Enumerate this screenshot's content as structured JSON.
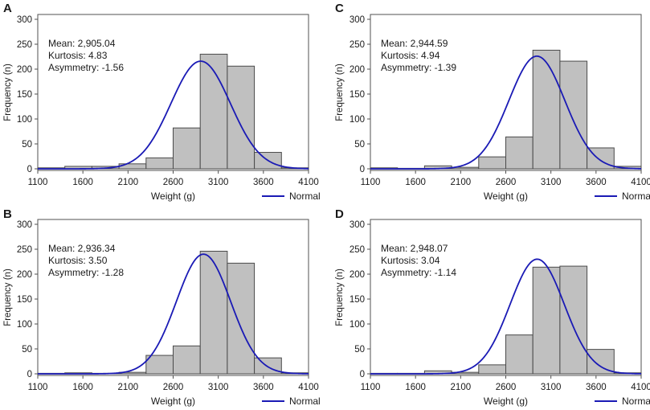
{
  "chart_data": [
    {
      "panel": "A",
      "type": "histogram",
      "xlabel": "Weight (g)",
      "ylabel": "Frequency (n)",
      "xlim": [
        1100,
        4100
      ],
      "ylim": [
        0,
        300
      ],
      "x_ticks": [
        "1100",
        "1600",
        "2100",
        "2600",
        "3100",
        "3600",
        "4100"
      ],
      "y_ticks": [
        "0",
        "50",
        "100",
        "150",
        "200",
        "250",
        "300"
      ],
      "stats": [
        "Mean: 2,905.04",
        "Kurtosis: 4.83",
        "Asymmetry: -1.56"
      ],
      "legend": "Normal",
      "bin_width": 300,
      "bin_starts": [
        1100,
        1400,
        1700,
        2000,
        2300,
        2600,
        2900,
        3200,
        3500,
        3800
      ],
      "values": [
        2,
        5,
        5,
        10,
        22,
        82,
        230,
        206,
        33,
        2
      ],
      "normal": {
        "mean": 2905.04,
        "sd": 330,
        "peak": 216
      }
    },
    {
      "panel": "C",
      "type": "histogram",
      "xlabel": "Weight (g)",
      "ylabel": "Frequency (n)",
      "xlim": [
        1100,
        4100
      ],
      "ylim": [
        0,
        300
      ],
      "x_ticks": [
        "1100",
        "1600",
        "2100",
        "2600",
        "3100",
        "3600",
        "4100"
      ],
      "y_ticks": [
        "0",
        "50",
        "100",
        "150",
        "200",
        "250",
        "300"
      ],
      "stats": [
        "Mean: 2,944.59",
        "Kurtosis: 4.94",
        "Asymmetry: -1.39"
      ],
      "legend": "Normal",
      "bin_width": 300,
      "bin_starts": [
        1100,
        1400,
        1700,
        2000,
        2300,
        2600,
        2900,
        3200,
        3500,
        3800
      ],
      "values": [
        2,
        1,
        6,
        3,
        24,
        64,
        238,
        216,
        42,
        5
      ],
      "normal": {
        "mean": 2944.59,
        "sd": 310,
        "peak": 226
      }
    },
    {
      "panel": "B",
      "type": "histogram",
      "xlabel": "Weight (g)",
      "ylabel": "Frequency (n)",
      "xlim": [
        1100,
        4100
      ],
      "ylim": [
        0,
        300
      ],
      "x_ticks": [
        "1100",
        "1600",
        "2100",
        "2600",
        "3100",
        "3600",
        "4100"
      ],
      "y_ticks": [
        "0",
        "50",
        "100",
        "150",
        "200",
        "250",
        "300"
      ],
      "stats": [
        "Mean: 2,936.34",
        "Kurtosis: 3.50",
        "Asymmetry: -1.28"
      ],
      "legend": "Normal",
      "bin_width": 300,
      "bin_starts": [
        1100,
        1400,
        1700,
        2000,
        2300,
        2600,
        2900,
        3200,
        3500,
        3800
      ],
      "values": [
        1,
        2,
        1,
        3,
        37,
        56,
        246,
        222,
        32,
        2
      ],
      "normal": {
        "mean": 2936.34,
        "sd": 300,
        "peak": 240
      }
    },
    {
      "panel": "D",
      "type": "histogram",
      "xlabel": "Weight (g)",
      "ylabel": "Frequency (n)",
      "xlim": [
        1100,
        4100
      ],
      "ylim": [
        0,
        300
      ],
      "x_ticks": [
        "1100",
        "1600",
        "2100",
        "2600",
        "3100",
        "3600",
        "4100"
      ],
      "y_ticks": [
        "0",
        "50",
        "100",
        "150",
        "200",
        "250",
        "300"
      ],
      "stats": [
        "Mean: 2,948.07",
        "Kurtosis: 3.04",
        "Asymmetry: -1.14"
      ],
      "legend": "Normal",
      "bin_width": 300,
      "bin_starts": [
        1100,
        1400,
        1700,
        2000,
        2300,
        2600,
        2900,
        3200,
        3500,
        3800
      ],
      "values": [
        1,
        1,
        6,
        3,
        18,
        78,
        214,
        216,
        49,
        2
      ],
      "normal": {
        "mean": 2948.07,
        "sd": 300,
        "peak": 230
      }
    }
  ],
  "colors": {
    "bar_fill": "#c0c0c0",
    "bar_stroke": "#4a4a4a",
    "normal_line": "#1a1ab5",
    "axis": "#505050",
    "text": "#1a1a1a"
  }
}
